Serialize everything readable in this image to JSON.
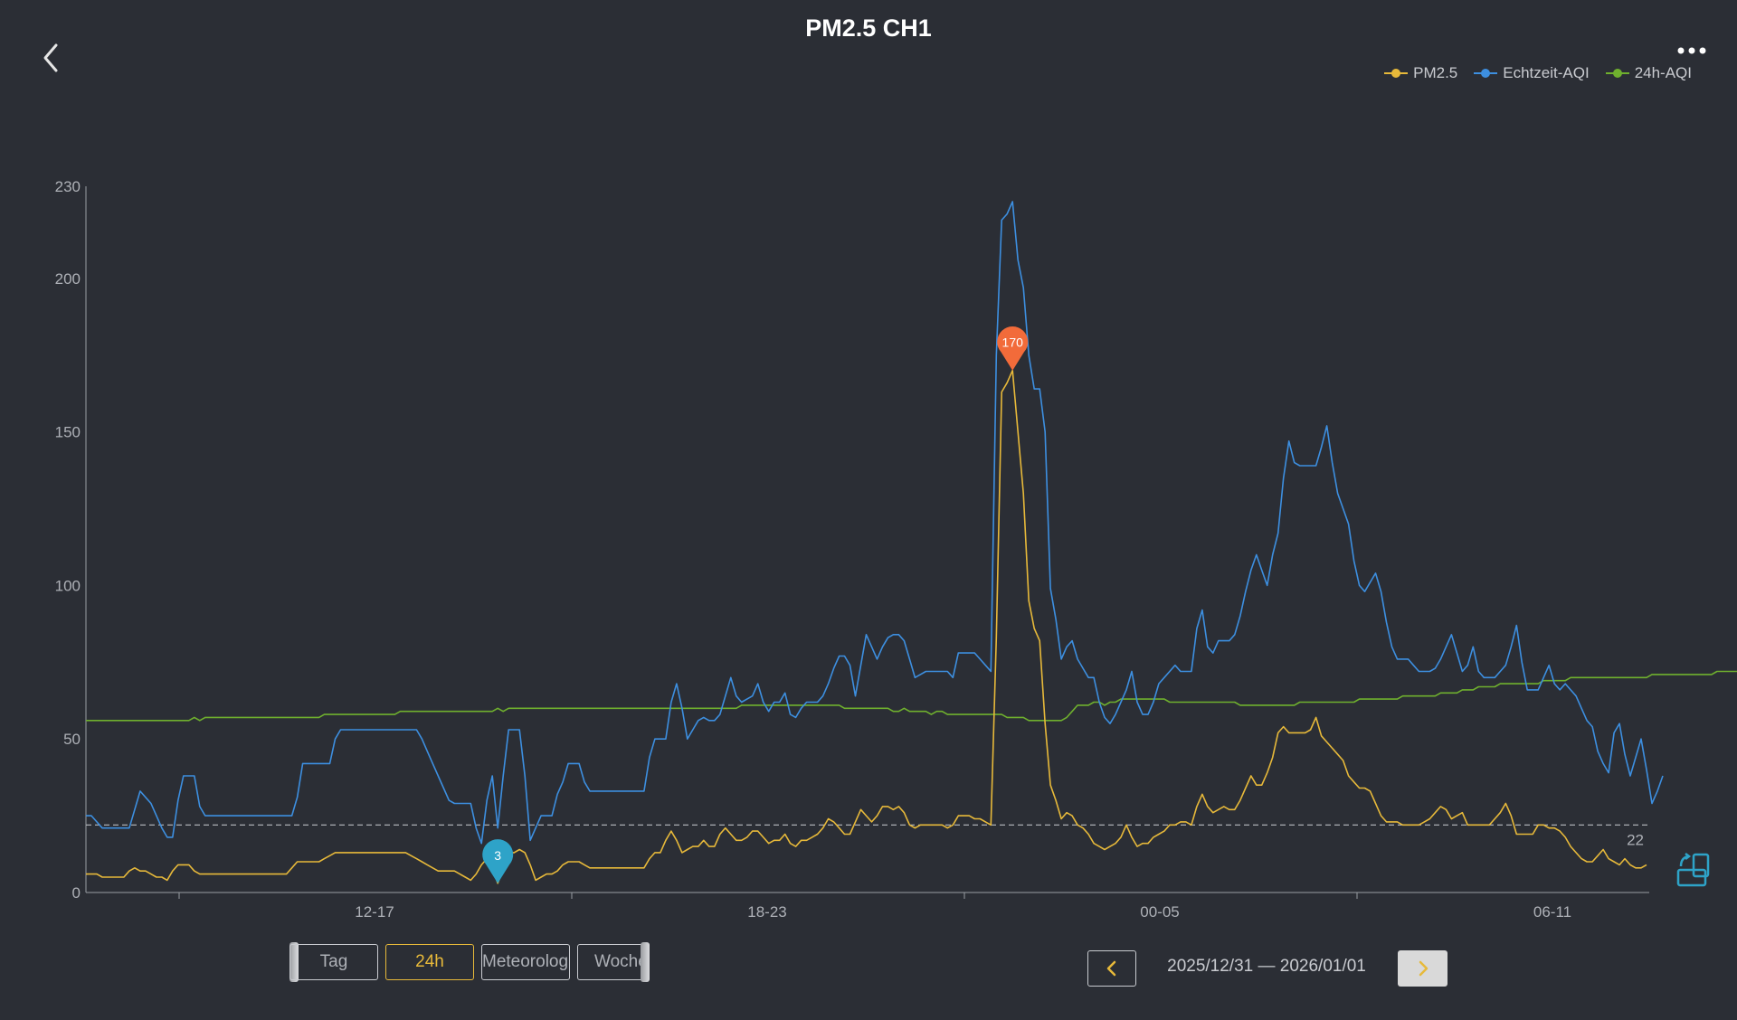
{
  "header": {
    "title": "PM2.5 CH1",
    "back_icon": "chevron-left-icon",
    "more_icon": "more-horizontal-icon"
  },
  "legend": [
    {
      "label": "PM2.5",
      "color": "#e7b93a"
    },
    {
      "label": "Echtzeit-AQI",
      "color": "#3d8fe0"
    },
    {
      "label": "24h-AQI",
      "color": "#6fb02e"
    }
  ],
  "chart_data": {
    "type": "line",
    "x_start": "10:00",
    "x_step_minutes": 5,
    "x_ticks": [
      "12-17",
      "18-23",
      "00-05",
      "06-11"
    ],
    "ylim": [
      0,
      230
    ],
    "y_ticks": [
      0,
      50,
      100,
      150,
      200,
      230
    ],
    "grid": false,
    "legend_position": "top-right",
    "reference_line": {
      "value": 22,
      "label": "22",
      "style": "dashed"
    },
    "markers": [
      {
        "series": "PM2.5",
        "type": "max",
        "value": 170,
        "label": "170",
        "color": "#f26b3a"
      },
      {
        "series": "PM2.5",
        "type": "min",
        "value": 3,
        "label": "3",
        "color": "#2ea3c8"
      }
    ],
    "series": [
      {
        "name": "PM2.5",
        "color": "#e7b93a",
        "values": [
          6,
          6,
          6,
          5,
          5,
          5,
          5,
          5,
          7,
          8,
          7,
          7,
          6,
          5,
          5,
          4,
          7,
          9,
          9,
          9,
          7,
          6,
          6,
          6,
          6,
          6,
          6,
          6,
          6,
          6,
          6,
          6,
          6,
          6,
          6,
          6,
          6,
          6,
          8,
          10,
          10,
          10,
          10,
          10,
          11,
          12,
          13,
          13,
          13,
          13,
          13,
          13,
          13,
          13,
          13,
          13,
          13,
          13,
          13,
          13,
          12,
          11,
          10,
          9,
          8,
          7,
          7,
          7,
          7,
          6,
          5,
          4,
          6,
          9,
          11,
          8,
          3,
          8,
          13,
          13,
          14,
          13,
          9,
          4,
          5,
          6,
          6,
          7,
          9,
          10,
          10,
          10,
          9,
          8,
          8,
          8,
          8,
          8,
          8,
          8,
          8,
          8,
          8,
          8,
          11,
          13,
          13,
          17,
          20,
          17,
          13,
          14,
          15,
          15,
          17,
          15,
          15,
          19,
          21,
          19,
          17,
          17,
          18,
          20,
          20,
          18,
          16,
          17,
          17,
          19,
          16,
          15,
          17,
          17,
          18,
          19,
          21,
          24,
          23,
          21,
          19,
          19,
          23,
          27,
          25,
          23,
          25,
          28,
          28,
          27,
          28,
          26,
          22,
          21,
          22,
          22,
          22,
          22,
          22,
          21,
          22,
          25,
          25,
          25,
          24,
          24,
          23,
          22,
          83,
          163,
          166,
          170,
          150,
          130,
          95,
          86,
          82,
          55,
          35,
          30,
          24,
          26,
          25,
          22,
          21,
          19,
          16,
          15,
          14,
          15,
          16,
          18,
          22,
          18,
          15,
          16,
          16,
          18,
          19,
          20,
          22,
          22,
          23,
          23,
          22,
          28,
          32,
          28,
          26,
          27,
          28,
          27,
          27,
          30,
          34,
          38,
          35,
          35,
          39,
          44,
          52,
          54,
          52,
          52,
          52,
          52,
          53,
          57,
          51,
          49,
          47,
          45,
          43,
          38,
          36,
          34,
          34,
          33,
          29,
          25,
          23,
          23,
          23,
          22,
          22,
          22,
          22,
          23,
          24,
          26,
          28,
          27,
          24,
          25,
          26,
          22,
          22,
          22,
          22,
          22,
          24,
          26,
          29,
          25,
          19,
          19,
          19,
          19,
          22,
          22,
          21,
          21,
          20,
          18,
          15,
          13,
          11,
          10,
          10,
          12,
          14,
          11,
          10,
          9,
          11,
          9,
          8,
          8,
          9
        ]
      },
      {
        "name": "Echtzeit-AQI",
        "color": "#3d8fe0",
        "values": [
          25,
          25,
          23,
          21,
          21,
          21,
          21,
          21,
          21,
          27,
          33,
          31,
          29,
          25,
          21,
          18,
          18,
          30,
          38,
          38,
          38,
          28,
          25,
          25,
          25,
          25,
          25,
          25,
          25,
          25,
          25,
          25,
          25,
          25,
          25,
          25,
          25,
          25,
          25,
          31,
          42,
          42,
          42,
          42,
          42,
          42,
          50,
          53,
          53,
          53,
          53,
          53,
          53,
          53,
          53,
          53,
          53,
          53,
          53,
          53,
          53,
          53,
          50,
          46,
          42,
          38,
          34,
          30,
          29,
          29,
          29,
          29,
          21,
          16,
          30,
          38,
          21,
          38,
          53,
          53,
          53,
          38,
          17,
          21,
          25,
          25,
          25,
          32,
          36,
          42,
          42,
          42,
          36,
          33,
          33,
          33,
          33,
          33,
          33,
          33,
          33,
          33,
          33,
          33,
          44,
          50,
          50,
          50,
          62,
          68,
          60,
          50,
          53,
          56,
          57,
          56,
          56,
          58,
          64,
          70,
          64,
          62,
          63,
          64,
          68,
          62,
          59,
          62,
          62,
          65,
          58,
          57,
          60,
          62,
          62,
          62,
          64,
          68,
          73,
          77,
          77,
          74,
          64,
          74,
          84,
          80,
          76,
          80,
          83,
          84,
          84,
          82,
          76,
          70,
          71,
          72,
          72,
          72,
          72,
          72,
          70,
          78,
          78,
          78,
          78,
          76,
          74,
          72,
          175,
          219,
          221,
          225,
          206,
          197,
          175,
          164,
          164,
          150,
          99,
          89,
          76,
          80,
          82,
          76,
          73,
          70,
          70,
          62,
          57,
          55,
          58,
          62,
          66,
          72,
          62,
          58,
          58,
          62,
          68,
          70,
          72,
          74,
          72,
          72,
          72,
          86,
          92,
          80,
          78,
          82,
          82,
          82,
          84,
          90,
          98,
          105,
          110,
          105,
          100,
          110,
          117,
          135,
          147,
          140,
          139,
          139,
          139,
          139,
          145,
          152,
          140,
          130,
          125,
          120,
          108,
          100,
          98,
          101,
          104,
          98,
          88,
          80,
          76,
          76,
          76,
          74,
          72,
          72,
          72,
          73,
          76,
          80,
          84,
          78,
          72,
          74,
          80,
          72,
          70,
          70,
          70,
          72,
          74,
          80,
          87,
          75,
          66,
          66,
          66,
          70,
          74,
          68,
          66,
          68,
          66,
          64,
          60,
          56,
          54,
          46,
          42,
          39,
          52,
          55,
          45,
          38,
          44,
          50,
          40,
          29,
          33,
          38
        ]
      },
      {
        "name": "24h-AQI",
        "color": "#6fb02e",
        "values": [
          56,
          56,
          56,
          56,
          56,
          56,
          56,
          56,
          56,
          56,
          56,
          56,
          56,
          56,
          56,
          56,
          56,
          56,
          56,
          56,
          57,
          56,
          57,
          57,
          57,
          57,
          57,
          57,
          57,
          57,
          57,
          57,
          57,
          57,
          57,
          57,
          57,
          57,
          57,
          57,
          57,
          57,
          57,
          57,
          58,
          58,
          58,
          58,
          58,
          58,
          58,
          58,
          58,
          58,
          58,
          58,
          58,
          58,
          59,
          59,
          59,
          59,
          59,
          59,
          59,
          59,
          59,
          59,
          59,
          59,
          59,
          59,
          59,
          59,
          59,
          59,
          60,
          59,
          60,
          60,
          60,
          60,
          60,
          60,
          60,
          60,
          60,
          60,
          60,
          60,
          60,
          60,
          60,
          60,
          60,
          60,
          60,
          60,
          60,
          60,
          60,
          60,
          60,
          60,
          60,
          60,
          60,
          60,
          60,
          60,
          60,
          60,
          60,
          60,
          60,
          60,
          60,
          60,
          60,
          60,
          60,
          61,
          61,
          61,
          61,
          61,
          61,
          61,
          61,
          61,
          61,
          61,
          61,
          61,
          61,
          61,
          61,
          61,
          61,
          61,
          60,
          60,
          60,
          60,
          60,
          60,
          60,
          60,
          60,
          59,
          59,
          60,
          59,
          59,
          59,
          59,
          58,
          59,
          59,
          58,
          58,
          58,
          58,
          58,
          58,
          58,
          58,
          58,
          58,
          58,
          57,
          57,
          57,
          57,
          56,
          56,
          56,
          56,
          56,
          56,
          56,
          57,
          59,
          61,
          61,
          61,
          62,
          62,
          61,
          62,
          62,
          63,
          63,
          63,
          63,
          63,
          63,
          63,
          63,
          63,
          62,
          62,
          62,
          62,
          62,
          62,
          62,
          62,
          62,
          62,
          62,
          62,
          62,
          61,
          61,
          61,
          61,
          61,
          61,
          61,
          61,
          61,
          61,
          61,
          62,
          62,
          62,
          62,
          62,
          62,
          62,
          62,
          62,
          62,
          62,
          63,
          63,
          63,
          63,
          63,
          63,
          63,
          63,
          64,
          64,
          64,
          64,
          64,
          64,
          64,
          65,
          65,
          65,
          65,
          66,
          66,
          66,
          67,
          67,
          67,
          67,
          68,
          68,
          68,
          68,
          68,
          68,
          68,
          68,
          69,
          69,
          69,
          69,
          69,
          70,
          70,
          70,
          70,
          70,
          70,
          70,
          70,
          70,
          70,
          70,
          70,
          70,
          70,
          70,
          71,
          71,
          71,
          71,
          71,
          71,
          71,
          71,
          71,
          71,
          71,
          71,
          72,
          72,
          72,
          72,
          72,
          72,
          72,
          72,
          72,
          72,
          72,
          72,
          72,
          72,
          72,
          72,
          72,
          72,
          72,
          72,
          72,
          72,
          72,
          72,
          72,
          72,
          72,
          73,
          72,
          72,
          73,
          72,
          72,
          73,
          73
        ]
      }
    ]
  },
  "controls": {
    "periods": [
      {
        "label": "Tag",
        "active": false
      },
      {
        "label": "24h",
        "active": true
      },
      {
        "label": "Meteorologie",
        "active": false
      },
      {
        "label": "Woche",
        "active": false
      }
    ],
    "date_range": "2025/12/31 — 2026/01/01",
    "prev_icon": "chevron-left-icon",
    "next_icon": "chevron-right-icon",
    "side_icon": "rotate-screen-icon"
  }
}
